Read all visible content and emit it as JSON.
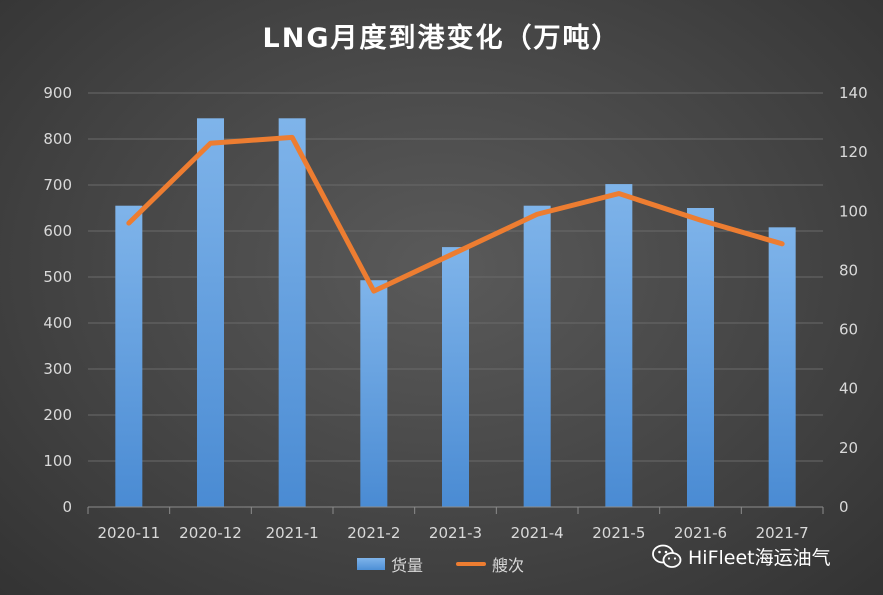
{
  "chart_data": {
    "type": "bar+line",
    "title": "LNG月度到港变化（万吨）",
    "categories": [
      "2020-11",
      "2020-12",
      "2021-1",
      "2021-2",
      "2021-3",
      "2021-4",
      "2021-5",
      "2021-6",
      "2021-7"
    ],
    "series": [
      {
        "name": "货量",
        "type": "bar",
        "axis": "left",
        "values": [
          655,
          845,
          845,
          493,
          565,
          655,
          702,
          650,
          608
        ]
      },
      {
        "name": "艘次",
        "type": "line",
        "axis": "right",
        "values": [
          96,
          123,
          125,
          73,
          86,
          99,
          106,
          97,
          89
        ]
      }
    ],
    "y_left": {
      "min": 0,
      "max": 900,
      "ticks": [
        "0",
        "100",
        "200",
        "300",
        "400",
        "500",
        "600",
        "700",
        "800",
        "900"
      ]
    },
    "y_right": {
      "min": 0,
      "max": 140,
      "ticks": [
        "0",
        "20",
        "40",
        "60",
        "80",
        "100",
        "120",
        "140"
      ]
    },
    "grid": true,
    "legend": "bottom-center",
    "colors": {
      "bar_top": "#7fb4ea",
      "bar_bottom": "#4a8bd3",
      "line": "#ed7d31",
      "grid": "#6a6a6a",
      "axis_text": "#d9d9d9"
    }
  },
  "watermark": {
    "text": "HiFleet海运油气",
    "icon": "wechat-icon"
  }
}
